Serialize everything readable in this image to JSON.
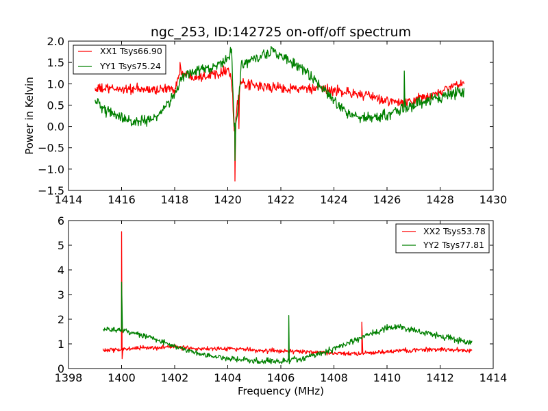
{
  "chart_data": [
    {
      "type": "line",
      "title": "ngc_253, ID:142725 on-off/off spectrum",
      "xlabel": "",
      "ylabel": "Power in Kelvin",
      "xlim": [
        1414,
        1430
      ],
      "ylim": [
        -1.5,
        2.0
      ],
      "xticks": [
        "1414",
        "1416",
        "1418",
        "1420",
        "1422",
        "1424",
        "1426",
        "1428",
        "1430"
      ],
      "yticks": [
        "2.0",
        "1.5",
        "1.0",
        "0.5",
        "0.0",
        "−0.5",
        "−1.0",
        "−1.5"
      ],
      "xtick_values": [
        1414,
        1416,
        1418,
        1420,
        1422,
        1424,
        1426,
        1428,
        1430
      ],
      "ytick_values": [
        2.0,
        1.5,
        1.0,
        0.5,
        0.0,
        -0.5,
        -1.0,
        -1.5
      ],
      "grid": false,
      "legend_position": "top-left",
      "x_range": [
        1415.0,
        1428.9
      ],
      "series": [
        {
          "name": "XX1 Tsys66.90",
          "color": "#ff0000",
          "noise": 0.09,
          "baseline": [
            [
              1415.0,
              0.88
            ],
            [
              1416.0,
              0.88
            ],
            [
              1417.0,
              0.86
            ],
            [
              1418.0,
              0.88
            ],
            [
              1418.2,
              1.25
            ],
            [
              1418.5,
              1.2
            ],
            [
              1419.0,
              1.18
            ],
            [
              1419.6,
              1.25
            ],
            [
              1420.0,
              1.35
            ],
            [
              1420.15,
              1.1
            ],
            [
              1420.25,
              -0.2
            ],
            [
              1420.35,
              0.5
            ],
            [
              1420.5,
              1.0
            ],
            [
              1421.0,
              0.95
            ],
            [
              1422.0,
              0.9
            ],
            [
              1423.0,
              0.88
            ],
            [
              1424.0,
              0.85
            ],
            [
              1425.0,
              0.75
            ],
            [
              1426.0,
              0.6
            ],
            [
              1426.5,
              0.55
            ],
            [
              1427.0,
              0.6
            ],
            [
              1428.0,
              0.8
            ],
            [
              1428.9,
              1.05
            ]
          ],
          "spikes": [
            [
              1420.27,
              -1.28
            ],
            [
              1420.42,
              -0.05
            ],
            [
              1418.2,
              1.5
            ]
          ]
        },
        {
          "name": "YY1 Tsys75.24",
          "color": "#008000",
          "noise": 0.1,
          "baseline": [
            [
              1415.0,
              0.6
            ],
            [
              1415.5,
              0.35
            ],
            [
              1416.0,
              0.2
            ],
            [
              1416.5,
              0.1
            ],
            [
              1417.0,
              0.12
            ],
            [
              1417.5,
              0.35
            ],
            [
              1418.0,
              0.75
            ],
            [
              1418.3,
              1.2
            ],
            [
              1419.0,
              1.3
            ],
            [
              1419.5,
              1.38
            ],
            [
              1420.0,
              1.6
            ],
            [
              1420.15,
              1.7
            ],
            [
              1420.25,
              0.0
            ],
            [
              1420.35,
              0.2
            ],
            [
              1420.5,
              1.4
            ],
            [
              1421.0,
              1.6
            ],
            [
              1421.8,
              1.75
            ],
            [
              1422.3,
              1.55
            ],
            [
              1423.0,
              1.25
            ],
            [
              1423.5,
              0.95
            ],
            [
              1424.0,
              0.6
            ],
            [
              1424.5,
              0.35
            ],
            [
              1425.0,
              0.2
            ],
            [
              1425.5,
              0.2
            ],
            [
              1426.0,
              0.28
            ],
            [
              1426.6,
              0.4
            ],
            [
              1427.0,
              0.5
            ],
            [
              1428.0,
              0.7
            ],
            [
              1428.9,
              0.85
            ]
          ],
          "spikes": [
            [
              1420.27,
              -0.8
            ],
            [
              1426.65,
              1.3
            ],
            [
              1420.1,
              1.85
            ]
          ]
        }
      ]
    },
    {
      "type": "line",
      "title": "",
      "xlabel": "Frequency (MHz)",
      "ylabel": "",
      "xlim": [
        1398,
        1414
      ],
      "ylim": [
        0,
        6
      ],
      "xticks": [
        "1398",
        "1400",
        "1402",
        "1404",
        "1406",
        "1408",
        "1410",
        "1412",
        "1414"
      ],
      "yticks": [
        "6",
        "5",
        "4",
        "3",
        "2",
        "1",
        "0"
      ],
      "xtick_values": [
        1398,
        1400,
        1402,
        1404,
        1406,
        1408,
        1410,
        1412,
        1414
      ],
      "ytick_values": [
        6,
        5,
        4,
        3,
        2,
        1,
        0
      ],
      "grid": false,
      "legend_position": "top-right",
      "x_range": [
        1399.3,
        1413.2
      ],
      "series": [
        {
          "name": "XX2 Tsys53.78",
          "color": "#ff0000",
          "noise": 0.07,
          "baseline": [
            [
              1399.3,
              0.75
            ],
            [
              1400.0,
              0.78
            ],
            [
              1401.0,
              0.85
            ],
            [
              1402.0,
              0.88
            ],
            [
              1403.0,
              0.8
            ],
            [
              1404.0,
              0.82
            ],
            [
              1405.0,
              0.75
            ],
            [
              1406.0,
              0.7
            ],
            [
              1407.0,
              0.68
            ],
            [
              1408.0,
              0.62
            ],
            [
              1409.0,
              0.6
            ],
            [
              1410.0,
              0.68
            ],
            [
              1411.0,
              0.75
            ],
            [
              1412.0,
              0.78
            ],
            [
              1413.2,
              0.72
            ]
          ],
          "spikes": [
            [
              1400.0,
              5.55
            ],
            [
              1400.02,
              0.4
            ],
            [
              1409.05,
              1.88
            ]
          ]
        },
        {
          "name": "YY2 Tsys77.81",
          "color": "#008000",
          "noise": 0.09,
          "baseline": [
            [
              1399.3,
              1.6
            ],
            [
              1400.0,
              1.55
            ],
            [
              1401.0,
              1.3
            ],
            [
              1402.0,
              0.9
            ],
            [
              1403.0,
              0.6
            ],
            [
              1404.0,
              0.4
            ],
            [
              1405.0,
              0.32
            ],
            [
              1406.0,
              0.3
            ],
            [
              1407.0,
              0.45
            ],
            [
              1408.0,
              0.8
            ],
            [
              1409.0,
              1.25
            ],
            [
              1410.0,
              1.65
            ],
            [
              1410.5,
              1.7
            ],
            [
              1411.0,
              1.55
            ],
            [
              1412.0,
              1.3
            ],
            [
              1413.2,
              1.05
            ]
          ],
          "spikes": [
            [
              1400.0,
              3.5
            ],
            [
              1406.3,
              2.15
            ],
            [
              1406.32,
              0.2
            ]
          ]
        }
      ]
    }
  ]
}
